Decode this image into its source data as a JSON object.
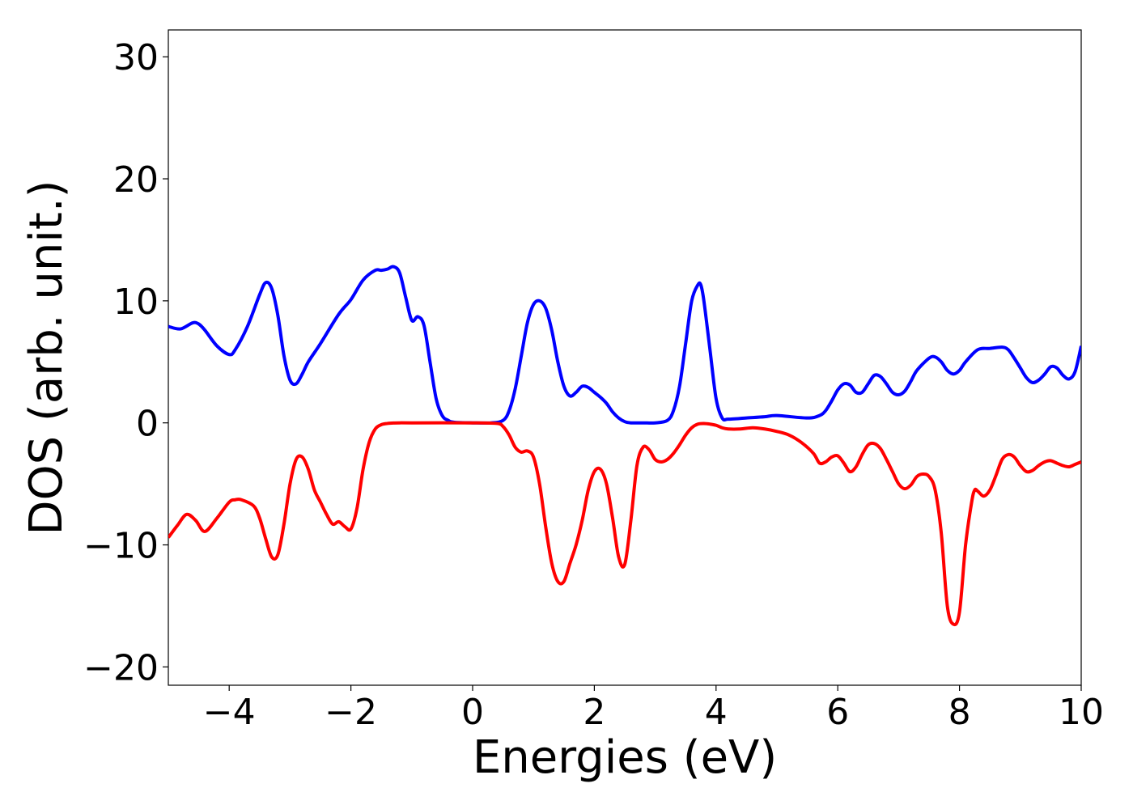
{
  "chart_data": {
    "type": "line",
    "xlabel": "Energies (eV)",
    "ylabel": "DOS (arb. unit.)",
    "xlim": [
      -5,
      10
    ],
    "ylim": [
      -21.5,
      32.2
    ],
    "xticks": [
      -4,
      -2,
      0,
      2,
      4,
      6,
      8,
      10
    ],
    "xtick_labels": [
      "−4",
      "−2",
      "0",
      "2",
      "4",
      "6",
      "8",
      "10"
    ],
    "yticks": [
      -20,
      -10,
      0,
      10,
      20,
      30
    ],
    "ytick_labels": [
      "−20",
      "−10",
      "0",
      "10",
      "20",
      "30"
    ],
    "grid": false,
    "series": [
      {
        "color": "#0000ff",
        "x": [
          -5.0,
          -4.8,
          -4.6,
          -4.5,
          -4.4,
          -4.2,
          -4.0,
          -3.9,
          -3.7,
          -3.5,
          -3.4,
          -3.3,
          -3.2,
          -3.1,
          -3.0,
          -2.9,
          -2.8,
          -2.7,
          -2.5,
          -2.2,
          -2.0,
          -1.8,
          -1.6,
          -1.5,
          -1.4,
          -1.3,
          -1.2,
          -1.1,
          -1.0,
          -0.9,
          -0.8,
          -0.7,
          -0.6,
          -0.5,
          -0.4,
          -0.3,
          0.0,
          0.3,
          0.5,
          0.6,
          0.7,
          0.8,
          0.9,
          1.0,
          1.1,
          1.2,
          1.3,
          1.4,
          1.5,
          1.6,
          1.7,
          1.8,
          1.9,
          2.0,
          2.1,
          2.2,
          2.3,
          2.4,
          2.5,
          2.6,
          2.8,
          3.0,
          3.2,
          3.3,
          3.4,
          3.5,
          3.6,
          3.7,
          3.75,
          3.8,
          3.9,
          4.0,
          4.1,
          4.2,
          4.5,
          4.8,
          5.0,
          5.5,
          5.7,
          5.8,
          5.9,
          6.0,
          6.1,
          6.2,
          6.3,
          6.4,
          6.5,
          6.6,
          6.7,
          6.8,
          6.9,
          7.0,
          7.1,
          7.2,
          7.3,
          7.5,
          7.6,
          7.7,
          7.8,
          7.9,
          8.0,
          8.1,
          8.3,
          8.5,
          8.7,
          8.8,
          8.9,
          9.0,
          9.1,
          9.2,
          9.3,
          9.4,
          9.5,
          9.6,
          9.7,
          9.8,
          9.9,
          10.0
        ],
        "y": [
          7.9,
          7.7,
          8.2,
          8.1,
          7.6,
          6.3,
          5.6,
          6.0,
          7.9,
          10.5,
          11.5,
          11.0,
          8.8,
          5.5,
          3.5,
          3.2,
          4.0,
          5.0,
          6.5,
          8.9,
          10.1,
          11.7,
          12.5,
          12.5,
          12.6,
          12.8,
          12.3,
          10.3,
          8.4,
          8.7,
          8.0,
          5.0,
          2.0,
          0.6,
          0.2,
          0.05,
          0.0,
          0.0,
          0.2,
          1.0,
          2.8,
          5.5,
          8.2,
          9.7,
          10.0,
          9.4,
          7.6,
          5.0,
          3.0,
          2.2,
          2.5,
          3.0,
          2.9,
          2.5,
          2.1,
          1.6,
          0.9,
          0.4,
          0.1,
          0.0,
          0.0,
          0.0,
          0.2,
          1.0,
          3.0,
          6.5,
          10.0,
          11.3,
          11.3,
          10.0,
          6.0,
          2.0,
          0.4,
          0.3,
          0.4,
          0.5,
          0.6,
          0.4,
          0.6,
          1.0,
          1.8,
          2.7,
          3.2,
          3.1,
          2.5,
          2.5,
          3.2,
          3.9,
          3.8,
          3.2,
          2.5,
          2.3,
          2.6,
          3.4,
          4.3,
          5.3,
          5.4,
          5.0,
          4.3,
          4.0,
          4.3,
          5.0,
          6.0,
          6.1,
          6.2,
          6.0,
          5.3,
          4.5,
          3.7,
          3.3,
          3.5,
          4.0,
          4.6,
          4.5,
          3.9,
          3.6,
          4.2,
          6.3
        ]
      },
      {
        "color": "#ff0000",
        "x": [
          -5.0,
          -4.85,
          -4.7,
          -4.55,
          -4.4,
          -4.2,
          -4.0,
          -3.9,
          -3.8,
          -3.6,
          -3.5,
          -3.4,
          -3.3,
          -3.2,
          -3.1,
          -3.0,
          -2.9,
          -2.8,
          -2.7,
          -2.6,
          -2.5,
          -2.4,
          -2.3,
          -2.2,
          -2.1,
          -2.0,
          -1.9,
          -1.8,
          -1.7,
          -1.6,
          -1.5,
          -1.4,
          -1.3,
          -1.2,
          -1.0,
          0.0,
          0.4,
          0.5,
          0.6,
          0.7,
          0.8,
          0.9,
          1.0,
          1.1,
          1.2,
          1.3,
          1.4,
          1.5,
          1.6,
          1.7,
          1.8,
          1.9,
          2.0,
          2.1,
          2.2,
          2.3,
          2.4,
          2.5,
          2.6,
          2.7,
          2.8,
          2.9,
          3.0,
          3.1,
          3.2,
          3.3,
          3.4,
          3.5,
          3.6,
          3.7,
          3.8,
          3.9,
          4.0,
          4.1,
          4.2,
          4.4,
          4.6,
          4.8,
          5.0,
          5.2,
          5.4,
          5.6,
          5.7,
          5.8,
          5.9,
          6.0,
          6.1,
          6.2,
          6.3,
          6.4,
          6.5,
          6.6,
          6.7,
          6.8,
          6.9,
          7.0,
          7.1,
          7.2,
          7.3,
          7.4,
          7.5,
          7.6,
          7.7,
          7.8,
          7.9,
          8.0,
          8.1,
          8.2,
          8.25,
          8.3,
          8.4,
          8.5,
          8.6,
          8.7,
          8.8,
          8.9,
          9.0,
          9.1,
          9.2,
          9.3,
          9.4,
          9.5,
          9.6,
          9.7,
          9.8,
          9.9,
          10.0
        ],
        "y": [
          -9.4,
          -8.4,
          -7.5,
          -8.0,
          -8.9,
          -7.8,
          -6.5,
          -6.3,
          -6.3,
          -6.8,
          -7.8,
          -9.5,
          -11.0,
          -10.8,
          -8.3,
          -5.0,
          -3.0,
          -2.8,
          -3.8,
          -5.5,
          -6.5,
          -7.5,
          -8.3,
          -8.1,
          -8.5,
          -8.7,
          -7.0,
          -3.8,
          -1.6,
          -0.5,
          -0.15,
          -0.05,
          -0.01,
          0.0,
          0.0,
          0.0,
          -0.05,
          -0.3,
          -1.0,
          -2.0,
          -2.4,
          -2.3,
          -2.8,
          -5.0,
          -8.5,
          -11.5,
          -13.0,
          -13.0,
          -11.5,
          -10.0,
          -8.0,
          -5.5,
          -4.0,
          -3.8,
          -5.0,
          -7.8,
          -11.0,
          -11.6,
          -8.0,
          -3.5,
          -2.0,
          -2.2,
          -3.0,
          -3.2,
          -3.0,
          -2.5,
          -1.8,
          -1.0,
          -0.4,
          -0.1,
          -0.05,
          -0.1,
          -0.2,
          -0.4,
          -0.5,
          -0.5,
          -0.4,
          -0.5,
          -0.7,
          -1.0,
          -1.6,
          -2.5,
          -3.3,
          -3.2,
          -2.8,
          -2.7,
          -3.3,
          -4.0,
          -3.6,
          -2.6,
          -1.8,
          -1.7,
          -2.1,
          -3.0,
          -4.0,
          -5.0,
          -5.4,
          -5.1,
          -4.4,
          -4.2,
          -4.4,
          -5.5,
          -9.0,
          -15.0,
          -16.5,
          -15.5,
          -10.0,
          -6.5,
          -5.5,
          -5.6,
          -6.0,
          -5.5,
          -4.3,
          -3.0,
          -2.6,
          -2.8,
          -3.5,
          -4.0,
          -3.9,
          -3.5,
          -3.2,
          -3.1,
          -3.3,
          -3.5,
          -3.6,
          -3.4,
          -3.2
        ]
      }
    ]
  }
}
